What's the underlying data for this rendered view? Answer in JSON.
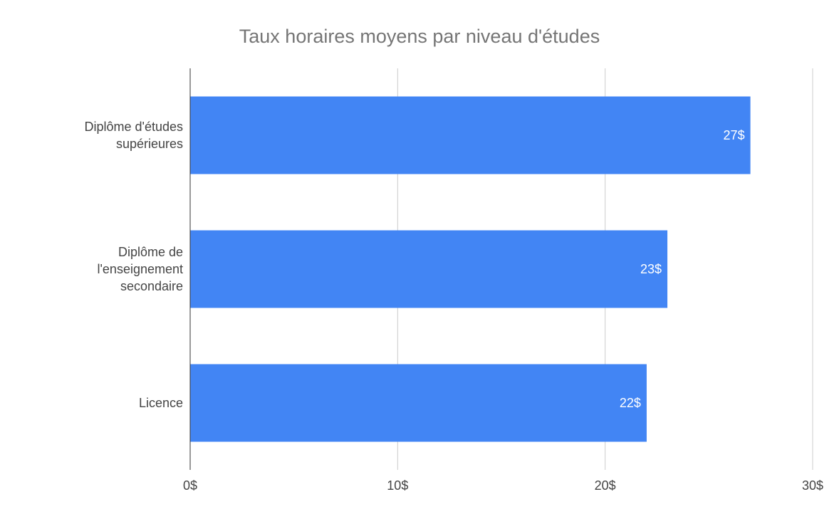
{
  "chart_data": {
    "type": "bar",
    "orientation": "horizontal",
    "title": "Taux horaires moyens par niveau d'études",
    "categories": [
      [
        "Diplôme d'études",
        "supérieures"
      ],
      [
        "Diplôme de",
        "l'enseignement",
        "secondaire"
      ],
      [
        "Licence"
      ]
    ],
    "values": [
      27,
      23,
      22
    ],
    "data_labels": [
      "27$",
      "23$",
      "22$"
    ],
    "xlim": [
      0,
      30
    ],
    "x_ticks": [
      0,
      10,
      20,
      30
    ],
    "x_tick_labels": [
      "0$",
      "10$",
      "20$",
      "30$"
    ],
    "xlabel": "",
    "ylabel": "",
    "grid": true,
    "legend": "none",
    "bar_color": "#4285f4",
    "grid_color": "#cccccc",
    "axis_color": "#333333"
  }
}
